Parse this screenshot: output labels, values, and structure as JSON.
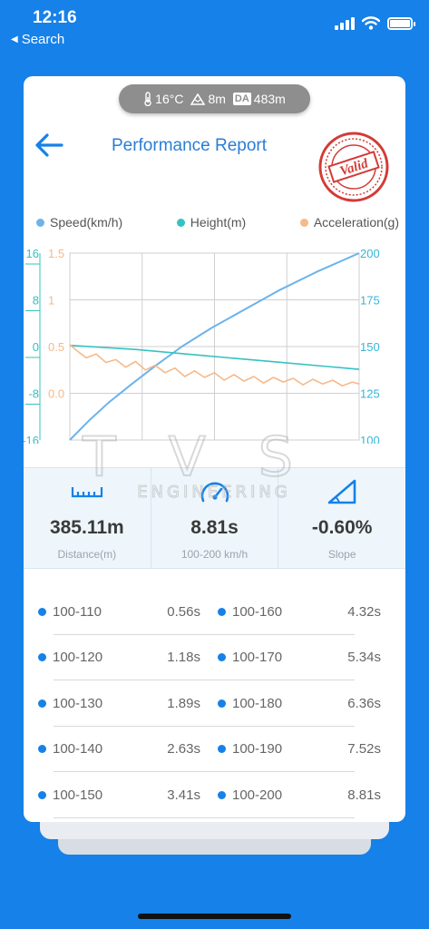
{
  "status_bar": {
    "time": "12:16",
    "back_label": "Search"
  },
  "env": {
    "temperature": "16°C",
    "elevation": "8m",
    "da_badge": "DA",
    "density_altitude": "483m"
  },
  "header": {
    "title": "Performance Report",
    "stamp_text": "Valid"
  },
  "legend": [
    {
      "label": "Speed(km/h)",
      "color": "#6db3ea"
    },
    {
      "label": "Height(m)",
      "color": "#35c2c2"
    },
    {
      "label": "Acceleration(g)",
      "color": "#f5b98a"
    }
  ],
  "chart_data": {
    "type": "line",
    "y_axis_height": {
      "ticks": [
        "16",
        "8",
        "0",
        "-8",
        "-16"
      ],
      "range": [
        -16,
        16
      ],
      "color": "#35c2c2"
    },
    "y_axis_accel": {
      "ticks": [
        "1.5",
        "1",
        "0.5",
        "0.0"
      ],
      "range": [
        -0.5,
        1.5
      ],
      "color": "#f5b98a"
    },
    "y_axis_speed": {
      "ticks": [
        "200",
        "175",
        "150",
        "125",
        "100"
      ],
      "range": [
        100,
        200
      ],
      "color": "#35b6d8"
    },
    "x_range": [
      0,
      8.81
    ],
    "grid": true,
    "series": [
      {
        "name": "Speed(km/h)",
        "color": "#6db3ea",
        "x": [
          0,
          0.56,
          1.18,
          1.89,
          2.63,
          3.41,
          4.32,
          5.34,
          6.36,
          7.52,
          8.81
        ],
        "y": [
          100,
          110,
          120,
          130,
          140,
          150,
          160,
          170,
          180,
          190,
          200
        ]
      },
      {
        "name": "Height(m)",
        "color": "#35c2c2",
        "x": [
          0,
          2,
          4,
          6,
          8,
          8.81
        ],
        "y": [
          0.2,
          -0.5,
          -1.5,
          -2.5,
          -3.5,
          -3.9
        ]
      },
      {
        "name": "Acceleration(g)",
        "color": "#f5b98a",
        "x": [
          0,
          0.2,
          0.5,
          0.8,
          1.1,
          1.4,
          1.7,
          2.0,
          2.3,
          2.6,
          2.9,
          3.2,
          3.5,
          3.8,
          4.1,
          4.4,
          4.7,
          5.0,
          5.3,
          5.6,
          5.9,
          6.2,
          6.5,
          6.8,
          7.1,
          7.4,
          7.7,
          8.0,
          8.3,
          8.6,
          8.81
        ],
        "y": [
          0.52,
          0.46,
          0.38,
          0.42,
          0.33,
          0.36,
          0.28,
          0.34,
          0.25,
          0.3,
          0.22,
          0.27,
          0.18,
          0.24,
          0.17,
          0.22,
          0.14,
          0.2,
          0.13,
          0.18,
          0.11,
          0.17,
          0.12,
          0.16,
          0.09,
          0.15,
          0.1,
          0.14,
          0.08,
          0.12,
          0.1
        ]
      }
    ]
  },
  "watermark": {
    "big": "TVS",
    "small": "ENGINEERING"
  },
  "stats": [
    {
      "value": "385.11m",
      "label": "Distance(m)",
      "icon": "ruler-icon"
    },
    {
      "value": "8.81s",
      "label": "100-200 km/h",
      "icon": "speedometer-icon"
    },
    {
      "value": "-0.60%",
      "label": "Slope",
      "icon": "slope-icon"
    }
  ],
  "splits": [
    {
      "left": {
        "label": "100-110",
        "time": "0.56s"
      },
      "right": {
        "label": "100-160",
        "time": "4.32s"
      }
    },
    {
      "left": {
        "label": "100-120",
        "time": "1.18s"
      },
      "right": {
        "label": "100-170",
        "time": "5.34s"
      }
    },
    {
      "left": {
        "label": "100-130",
        "time": "1.89s"
      },
      "right": {
        "label": "100-180",
        "time": "6.36s"
      }
    },
    {
      "left": {
        "label": "100-140",
        "time": "2.63s"
      },
      "right": {
        "label": "100-190",
        "time": "7.52s"
      }
    },
    {
      "left": {
        "label": "100-150",
        "time": "3.41s"
      },
      "right": {
        "label": "100-200",
        "time": "8.81s"
      }
    }
  ]
}
